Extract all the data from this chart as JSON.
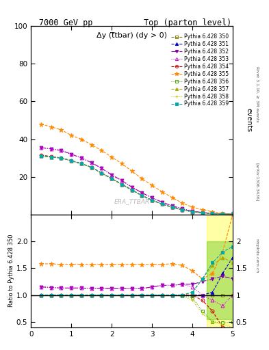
{
  "title_left": "7000 GeV pp",
  "title_right": "Top (parton level)",
  "ylabel_main": "events",
  "ylabel_ratio": "Ratio to Pythia 6.428 350",
  "plot_label": "Δy (t̅tbar) (dy > 0)",
  "watermark": "ERA_TTBAR",
  "rivet_text": "Rivet 3.1.10, ≥ 3M events",
  "arxiv_text": "[arXiv:1306.3436]",
  "mcplots_text": "mcplots.cern.ch",
  "series": [
    {
      "label": "Pythia 6.428 350",
      "color": "#808000",
      "marker": "s",
      "linestyle": "--",
      "filled": false
    },
    {
      "label": "Pythia 6.428 351",
      "color": "#0000cc",
      "marker": "^",
      "linestyle": "--",
      "filled": true
    },
    {
      "label": "Pythia 6.428 352",
      "color": "#8800aa",
      "marker": "v",
      "linestyle": "-.",
      "filled": true
    },
    {
      "label": "Pythia 6.428 353",
      "color": "#cc00cc",
      "marker": "^",
      "linestyle": ":",
      "filled": false
    },
    {
      "label": "Pythia 6.428 354",
      "color": "#cc0000",
      "marker": "o",
      "linestyle": "--",
      "filled": false
    },
    {
      "label": "Pythia 6.428 355",
      "color": "#ff8800",
      "marker": "*",
      "linestyle": "--",
      "filled": true
    },
    {
      "label": "Pythia 6.428 356",
      "color": "#44aa00",
      "marker": "s",
      "linestyle": ":",
      "filled": false
    },
    {
      "label": "Pythia 6.428 357",
      "color": "#aaaa00",
      "marker": "^",
      "linestyle": "--",
      "filled": true
    },
    {
      "label": "Pythia 6.428 358",
      "color": "#cccc00",
      "marker": "+",
      "linestyle": ":",
      "filled": false
    },
    {
      "label": "Pythia 6.428 359",
      "color": "#00aaaa",
      "marker": "s",
      "linestyle": "--",
      "filled": true
    }
  ],
  "x_main": [
    0.25,
    0.5,
    0.75,
    1.0,
    1.25,
    1.5,
    1.75,
    2.0,
    2.25,
    2.5,
    2.75,
    3.0,
    3.25,
    3.5,
    3.75,
    4.0,
    4.25,
    4.5,
    4.75,
    5.0
  ],
  "y_350": [
    31.0,
    30.5,
    30.0,
    28.5,
    27.0,
    25.0,
    22.0,
    19.0,
    16.0,
    13.0,
    10.0,
    7.5,
    5.5,
    3.8,
    2.5,
    1.4,
    0.8,
    0.4,
    0.2,
    0.05
  ],
  "y_351": [
    31.0,
    30.5,
    30.0,
    28.5,
    27.0,
    25.0,
    22.0,
    19.0,
    16.0,
    13.0,
    10.0,
    7.5,
    5.5,
    3.8,
    2.5,
    1.4,
    0.8,
    0.4,
    0.2,
    0.05
  ],
  "y_352": [
    35.5,
    34.8,
    34.0,
    32.0,
    30.0,
    27.5,
    24.5,
    21.0,
    18.0,
    14.5,
    11.5,
    8.8,
    6.5,
    4.5,
    3.0,
    1.7,
    1.0,
    0.5,
    0.25,
    0.06
  ],
  "y_353": [
    35.5,
    34.8,
    34.0,
    32.0,
    30.0,
    27.5,
    24.5,
    21.0,
    18.0,
    14.5,
    11.5,
    8.8,
    6.5,
    4.5,
    3.0,
    1.7,
    1.0,
    0.5,
    0.25,
    0.06
  ],
  "y_354": [
    31.5,
    30.8,
    30.0,
    28.5,
    27.0,
    25.0,
    22.0,
    19.0,
    16.0,
    13.0,
    10.0,
    7.5,
    5.5,
    3.8,
    2.5,
    1.4,
    0.8,
    0.4,
    0.2,
    0.05
  ],
  "y_355": [
    48.0,
    46.5,
    45.0,
    42.0,
    40.0,
    37.0,
    34.0,
    30.5,
    27.0,
    23.0,
    19.0,
    15.5,
    12.0,
    9.0,
    6.0,
    3.8,
    2.5,
    1.4,
    0.6,
    0.15
  ],
  "y_356": [
    31.0,
    30.5,
    30.0,
    28.5,
    27.0,
    25.0,
    22.0,
    19.0,
    16.0,
    13.0,
    10.0,
    7.5,
    5.5,
    3.8,
    2.5,
    1.4,
    0.8,
    0.4,
    0.2,
    0.05
  ],
  "y_357": [
    31.0,
    30.5,
    30.0,
    28.5,
    27.0,
    25.0,
    22.0,
    19.0,
    16.0,
    13.0,
    10.0,
    7.5,
    5.5,
    3.8,
    2.5,
    1.4,
    0.8,
    0.4,
    0.2,
    0.05
  ],
  "y_358": [
    31.0,
    30.5,
    30.0,
    28.5,
    27.0,
    25.0,
    22.0,
    19.0,
    16.0,
    13.0,
    10.0,
    7.5,
    5.5,
    3.8,
    2.5,
    1.4,
    0.8,
    0.4,
    0.2,
    0.05
  ],
  "y_359": [
    31.0,
    30.5,
    30.0,
    28.5,
    27.0,
    25.0,
    22.0,
    19.0,
    16.0,
    13.0,
    10.0,
    7.5,
    5.5,
    3.8,
    2.5,
    1.4,
    0.8,
    0.4,
    0.2,
    0.05
  ],
  "ratio_350": [
    1.0,
    1.0,
    1.0,
    1.0,
    1.0,
    1.0,
    1.0,
    1.0,
    1.0,
    1.0,
    1.0,
    1.0,
    1.0,
    1.0,
    1.0,
    1.0,
    1.0,
    1.0,
    1.0,
    1.0
  ],
  "ratio_351": [
    1.0,
    1.0,
    1.0,
    1.0,
    1.0,
    1.0,
    1.0,
    1.0,
    1.0,
    1.0,
    1.0,
    1.0,
    1.0,
    1.0,
    1.0,
    1.0,
    1.0,
    1.05,
    1.4,
    1.7
  ],
  "ratio_352": [
    1.15,
    1.14,
    1.13,
    1.13,
    1.13,
    1.12,
    1.12,
    1.12,
    1.12,
    1.12,
    1.12,
    1.15,
    1.18,
    1.18,
    1.2,
    1.2,
    1.25,
    1.3,
    1.35,
    1.3
  ],
  "ratio_353": [
    1.15,
    1.14,
    1.13,
    1.13,
    1.13,
    1.12,
    1.12,
    1.12,
    1.12,
    1.12,
    1.12,
    1.15,
    1.18,
    1.18,
    1.2,
    1.15,
    1.0,
    0.9,
    0.8,
    1.0
  ],
  "ratio_354": [
    1.0,
    1.0,
    1.0,
    1.0,
    1.0,
    1.0,
    1.0,
    1.0,
    1.0,
    1.0,
    1.0,
    1.0,
    1.0,
    1.0,
    1.0,
    1.0,
    0.9,
    0.7,
    0.4,
    0.3
  ],
  "ratio_355": [
    1.58,
    1.58,
    1.57,
    1.57,
    1.57,
    1.57,
    1.57,
    1.57,
    1.57,
    1.57,
    1.57,
    1.57,
    1.57,
    1.58,
    1.55,
    1.45,
    1.3,
    1.4,
    1.8,
    2.5
  ],
  "ratio_356": [
    1.0,
    1.0,
    1.0,
    1.0,
    1.0,
    1.0,
    1.0,
    1.0,
    1.0,
    1.0,
    1.0,
    1.0,
    1.0,
    1.0,
    0.98,
    0.95,
    0.7,
    0.5,
    0.48,
    0.5
  ],
  "ratio_357": [
    1.0,
    1.0,
    1.0,
    1.0,
    1.0,
    1.0,
    1.0,
    1.0,
    1.0,
    1.0,
    1.0,
    1.0,
    1.0,
    1.0,
    1.0,
    1.05,
    1.3,
    1.55,
    1.7,
    1.6
  ],
  "ratio_358": [
    1.0,
    1.0,
    1.0,
    1.0,
    1.0,
    1.0,
    1.0,
    1.0,
    1.0,
    1.0,
    1.0,
    1.0,
    1.0,
    1.0,
    0.98,
    0.9,
    0.65,
    0.5,
    0.45,
    0.4
  ],
  "ratio_359": [
    1.0,
    1.0,
    1.0,
    1.0,
    1.0,
    1.0,
    1.0,
    1.0,
    1.0,
    1.0,
    1.0,
    1.0,
    1.0,
    1.0,
    1.0,
    1.05,
    1.3,
    1.6,
    1.8,
    1.9
  ],
  "ylim_main": [
    0,
    100
  ],
  "ylim_ratio": [
    0.4,
    2.5
  ],
  "xlim": [
    0,
    5
  ],
  "bg_color": "#ffffff"
}
